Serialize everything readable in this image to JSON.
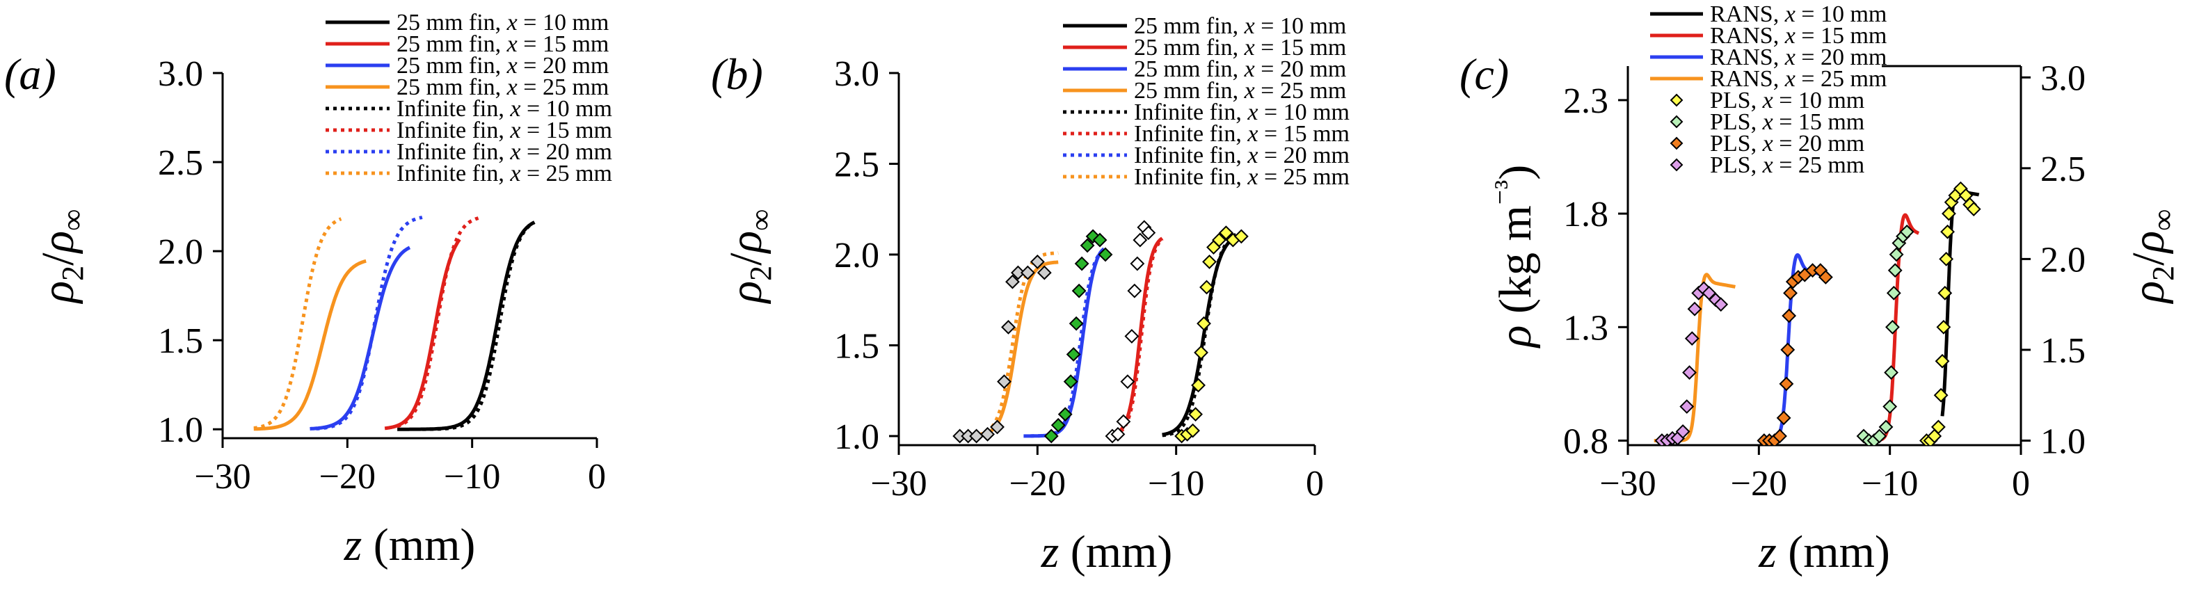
{
  "chart_data": [
    {
      "panel_label": "(a)",
      "type": "line",
      "xlabel_var": "z",
      "xlabel_unit": " (mm)",
      "ylabel": "ρ2/ρ∞",
      "xlim": [
        -30,
        0
      ],
      "ylim": [
        0.95,
        3.0
      ],
      "xticks": [
        -30,
        -20,
        -10,
        0
      ],
      "xtick_labels": [
        "−30",
        "−20",
        "−10",
        "0"
      ],
      "yticks": [
        1.0,
        1.5,
        2.0,
        2.5,
        3.0
      ],
      "ytick_labels": [
        "1.0",
        "1.5",
        "2.0",
        "2.5",
        "3.0"
      ],
      "series": [
        {
          "name": "25 mm fin, x = 10 mm",
          "legend_prefix": "25 mm fin, ",
          "style": "solid",
          "color": "#000000",
          "x0": -16.0,
          "x1": -5.0,
          "center": -8.0,
          "width": 0.8,
          "base": 1.0,
          "peak": 2.19,
          "bump": 0
        },
        {
          "name": "25 mm fin, x = 15 mm",
          "legend_prefix": "25 mm fin, ",
          "style": "solid",
          "color": "#e0201b",
          "x0": -17.0,
          "x1": -11.0,
          "center": -13.0,
          "width": 0.75,
          "base": 1.0,
          "peak": 2.14,
          "bump": 0
        },
        {
          "name": "25 mm fin, x = 20 mm",
          "legend_prefix": "25 mm fin, ",
          "style": "solid",
          "color": "#2b3ff0",
          "x0": -23.0,
          "x1": -15.0,
          "center": -18.0,
          "width": 0.85,
          "base": 1.0,
          "peak": 2.04,
          "bump": 0.01
        },
        {
          "name": "25 mm fin, x = 25 mm",
          "legend_prefix": "25 mm fin, ",
          "style": "solid",
          "color": "#f7931e",
          "x0": -27.5,
          "x1": -18.5,
          "center": -22.0,
          "width": 0.85,
          "base": 1.0,
          "peak": 1.96,
          "bump": 0
        },
        {
          "name": "Infinite fin, x = 10 mm",
          "legend_prefix": "Infinite fin, ",
          "style": "dotted",
          "color": "#000000",
          "x0": -14.0,
          "x1": -5.0,
          "center": -7.8,
          "width": 0.75,
          "base": 1.0,
          "peak": 2.19,
          "bump": 0
        },
        {
          "name": "Infinite fin, x = 15 mm",
          "legend_prefix": "Infinite fin, ",
          "style": "dotted",
          "color": "#e0201b",
          "x0": -16.0,
          "x1": -9.5,
          "center": -12.8,
          "width": 0.75,
          "base": 1.0,
          "peak": 2.2,
          "bump": 0
        },
        {
          "name": "Infinite fin, x = 20 mm",
          "legend_prefix": "Infinite fin, ",
          "style": "dotted",
          "color": "#2b3ff0",
          "x0": -22.5,
          "x1": -14.0,
          "center": -17.8,
          "width": 0.8,
          "base": 1.0,
          "peak": 2.2,
          "bump": 0
        },
        {
          "name": "Infinite fin, x = 25 mm",
          "legend_prefix": "Infinite fin, ",
          "style": "dotted",
          "color": "#f7931e",
          "x0": -27.5,
          "x1": -20.5,
          "center": -23.6,
          "width": 0.75,
          "base": 1.0,
          "peak": 2.2,
          "bump": 0
        }
      ]
    },
    {
      "panel_label": "(b)",
      "type": "line+scatter",
      "xlabel_var": "z",
      "xlabel_unit": " (mm)",
      "ylabel": "ρ2/ρ∞",
      "xlim": [
        -30,
        0
      ],
      "ylim": [
        0.95,
        3.0
      ],
      "xticks": [
        -30,
        -20,
        -10,
        0
      ],
      "xtick_labels": [
        "−30",
        "−20",
        "−10",
        "0"
      ],
      "yticks": [
        1.0,
        1.5,
        2.0,
        2.5,
        3.0
      ],
      "ytick_labels": [
        "1.0",
        "1.5",
        "2.0",
        "2.5",
        "3.0"
      ],
      "series": [
        {
          "name": "25 mm fin, x = 10 mm",
          "legend_prefix": "25 mm fin, ",
          "style": "solid",
          "color": "#000000",
          "x0": -11.0,
          "x1": -5.5,
          "center": -8.0,
          "width": 0.6,
          "base": 1.0,
          "peak": 2.12,
          "bump": 0
        },
        {
          "name": "25 mm fin, x = 15 mm",
          "legend_prefix": "25 mm fin, ",
          "style": "solid",
          "color": "#e0201b",
          "x0": -14.5,
          "x1": -11.0,
          "center": -12.6,
          "width": 0.4,
          "base": 1.0,
          "peak": 2.11,
          "bump": 0
        },
        {
          "name": "25 mm fin, x = 20 mm",
          "legend_prefix": "25 mm fin, ",
          "style": "solid",
          "color": "#2b3ff0",
          "x0": -21.0,
          "x1": -15.2,
          "center": -16.8,
          "width": 0.45,
          "base": 1.0,
          "peak": 2.0,
          "bump": 0.06
        },
        {
          "name": "25 mm fin, x = 25 mm",
          "legend_prefix": "25 mm fin, ",
          "style": "solid",
          "color": "#f7931e",
          "x0": -24.2,
          "x1": -18.5,
          "center": -21.6,
          "width": 0.5,
          "base": 1.0,
          "peak": 1.96,
          "bump": 0
        },
        {
          "name": "Infinite fin, x = 10 mm",
          "legend_prefix": "Infinite fin, ",
          "style": "dotted",
          "color": "#000000",
          "x0": -11.0,
          "x1": -5.5,
          "center": -7.9,
          "width": 0.55,
          "base": 1.0,
          "peak": 2.13,
          "bump": 0
        },
        {
          "name": "Infinite fin, x = 15 mm",
          "legend_prefix": "Infinite fin, ",
          "style": "dotted",
          "color": "#e0201b",
          "x0": -14.5,
          "x1": -11.0,
          "center": -12.5,
          "width": 0.4,
          "base": 1.0,
          "peak": 2.11,
          "bump": 0
        },
        {
          "name": "Infinite fin, x = 20 mm",
          "legend_prefix": "Infinite fin, ",
          "style": "dotted",
          "color": "#2b3ff0",
          "x0": -20.5,
          "x1": -15.2,
          "center": -16.9,
          "width": 0.45,
          "base": 1.0,
          "peak": 2.05,
          "bump": 0
        },
        {
          "name": "Infinite fin, x = 25 mm",
          "legend_prefix": "Infinite fin, ",
          "style": "dotted",
          "color": "#f7931e",
          "x0": -24.2,
          "x1": -18.5,
          "center": -21.8,
          "width": 0.5,
          "base": 1.0,
          "peak": 2.01,
          "bump": 0
        }
      ],
      "markers": [
        {
          "name": "Experiment markers 10 mm",
          "color": "#ffff4d",
          "points": [
            [
              -9.6,
              1.0
            ],
            [
              -9.2,
              1.01
            ],
            [
              -8.8,
              1.03
            ],
            [
              -8.6,
              1.12
            ],
            [
              -8.4,
              1.28
            ],
            [
              -8.2,
              1.46
            ],
            [
              -8.0,
              1.62
            ],
            [
              -7.8,
              1.82
            ],
            [
              -7.6,
              1.96
            ],
            [
              -7.3,
              2.04
            ],
            [
              -6.9,
              2.08
            ],
            [
              -6.4,
              2.12
            ],
            [
              -5.9,
              2.08
            ],
            [
              -5.3,
              2.1
            ]
          ]
        },
        {
          "name": "Experiment markers 15 mm",
          "color": "#ffffff",
          "points": [
            [
              -14.6,
              1.0
            ],
            [
              -14.2,
              1.01
            ],
            [
              -13.8,
              1.08
            ],
            [
              -13.5,
              1.3
            ],
            [
              -13.2,
              1.55
            ],
            [
              -13.0,
              1.8
            ],
            [
              -12.8,
              1.95
            ],
            [
              -12.6,
              2.08
            ],
            [
              -12.3,
              2.15
            ],
            [
              -12.0,
              2.12
            ]
          ]
        },
        {
          "name": "Experiment markers 20 mm",
          "color": "#2ab52a",
          "points": [
            [
              -19.0,
              1.0
            ],
            [
              -18.5,
              1.06
            ],
            [
              -18.0,
              1.12
            ],
            [
              -17.6,
              1.3
            ],
            [
              -17.4,
              1.45
            ],
            [
              -17.2,
              1.62
            ],
            [
              -17.0,
              1.8
            ],
            [
              -16.8,
              1.95
            ],
            [
              -16.4,
              2.05
            ],
            [
              -16.0,
              2.1
            ],
            [
              -15.5,
              2.08
            ],
            [
              -15.1,
              2.0
            ]
          ]
        },
        {
          "name": "Experiment markers 25 mm",
          "color": "#cfcfcf",
          "points": [
            [
              -25.6,
              1.0
            ],
            [
              -25.0,
              1.0
            ],
            [
              -24.4,
              1.0
            ],
            [
              -23.6,
              1.01
            ],
            [
              -22.9,
              1.05
            ],
            [
              -22.4,
              1.3
            ],
            [
              -22.1,
              1.6
            ],
            [
              -21.8,
              1.85
            ],
            [
              -21.4,
              1.9
            ],
            [
              -20.7,
              1.9
            ],
            [
              -20.0,
              1.96
            ],
            [
              -19.5,
              1.9
            ]
          ]
        }
      ]
    },
    {
      "panel_label": "(c)",
      "type": "line+scatter",
      "xlabel_var": "z",
      "xlabel_unit": " (mm)",
      "ylabel_left": "ρ (kg m⁻³)",
      "ylabel_right": "ρ2/ρ∞",
      "xlim": [
        -30,
        0
      ],
      "ylim": [
        0.78,
        2.45
      ],
      "xticks": [
        -30,
        -20,
        -10,
        0
      ],
      "xtick_labels": [
        "−30",
        "−20",
        "−10",
        "0"
      ],
      "yticks": [
        0.8,
        1.3,
        1.8,
        2.3
      ],
      "ytick_labels": [
        "0.8",
        "1.3",
        "1.8",
        "2.3"
      ],
      "right_scale": 0.8,
      "right_yticks": [
        1.0,
        1.5,
        2.0,
        2.5,
        3.0
      ],
      "right_ytick_labels": [
        "1.0",
        "1.5",
        "2.0",
        "2.5",
        "3.0"
      ],
      "series": [
        {
          "name": "RANS, x = 10 mm",
          "legend_prefix": "RANS, ",
          "style": "solid",
          "color": "#000000",
          "x0": -6.0,
          "x1": -3.2,
          "center": -5.6,
          "width": 0.18,
          "base": 0.8,
          "peak": 1.9,
          "bump": 0.04
        },
        {
          "name": "RANS, x = 15 mm",
          "legend_prefix": "RANS, ",
          "style": "solid",
          "color": "#e0201b",
          "x0": -12.0,
          "x1": -7.8,
          "center": -9.6,
          "width": 0.2,
          "base": 0.8,
          "peak": 1.74,
          "bump": 0.08
        },
        {
          "name": "RANS, x = 20 mm",
          "legend_prefix": "RANS, ",
          "style": "solid",
          "color": "#2b3ff0",
          "x0": -19.0,
          "x1": -14.8,
          "center": -17.8,
          "width": 0.2,
          "base": 0.8,
          "peak": 1.56,
          "bump": 0.08
        },
        {
          "name": "RANS, x = 25 mm",
          "legend_prefix": "RANS, ",
          "style": "solid",
          "color": "#f7931e",
          "x0": -28.0,
          "x1": -21.8,
          "center": -24.7,
          "width": 0.18,
          "base": 0.8,
          "peak": 1.5,
          "bump": 0.05
        }
      ],
      "markers": [
        {
          "name": "PLS, x = 10 mm",
          "legend_prefix": "PLS, ",
          "color": "#ffff4d",
          "points": [
            [
              -7.2,
              0.8
            ],
            [
              -6.9,
              0.8
            ],
            [
              -6.6,
              0.82
            ],
            [
              -6.3,
              0.86
            ],
            [
              -6.1,
              1.0
            ],
            [
              -6.0,
              1.15
            ],
            [
              -5.9,
              1.3
            ],
            [
              -5.8,
              1.45
            ],
            [
              -5.7,
              1.6
            ],
            [
              -5.6,
              1.72
            ],
            [
              -5.5,
              1.8
            ],
            [
              -5.3,
              1.85
            ],
            [
              -5.0,
              1.88
            ],
            [
              -4.6,
              1.91
            ],
            [
              -4.2,
              1.88
            ],
            [
              -3.9,
              1.84
            ],
            [
              -3.6,
              1.82
            ]
          ]
        },
        {
          "name": "PLS, x = 15 mm",
          "legend_prefix": "PLS, ",
          "color": "#b8f0b8",
          "points": [
            [
              -12.0,
              0.82
            ],
            [
              -11.6,
              0.8
            ],
            [
              -11.2,
              0.8
            ],
            [
              -10.8,
              0.82
            ],
            [
              -10.3,
              0.86
            ],
            [
              -10.0,
              0.95
            ],
            [
              -9.9,
              1.1
            ],
            [
              -9.8,
              1.3
            ],
            [
              -9.7,
              1.45
            ],
            [
              -9.6,
              1.55
            ],
            [
              -9.5,
              1.62
            ],
            [
              -9.3,
              1.67
            ],
            [
              -9.0,
              1.7
            ],
            [
              -8.7,
              1.72
            ]
          ]
        },
        {
          "name": "PLS, x = 20 mm",
          "legend_prefix": "PLS, ",
          "color": "#f07d1e",
          "points": [
            [
              -19.6,
              0.8
            ],
            [
              -19.2,
              0.8
            ],
            [
              -18.8,
              0.8
            ],
            [
              -18.4,
              0.82
            ],
            [
              -18.1,
              0.9
            ],
            [
              -17.9,
              1.05
            ],
            [
              -17.8,
              1.2
            ],
            [
              -17.7,
              1.35
            ],
            [
              -17.6,
              1.45
            ],
            [
              -17.4,
              1.5
            ],
            [
              -17.0,
              1.52
            ],
            [
              -16.5,
              1.53
            ],
            [
              -15.9,
              1.55
            ],
            [
              -15.3,
              1.55
            ],
            [
              -14.9,
              1.52
            ]
          ]
        },
        {
          "name": "PLS, x = 25 mm",
          "legend_prefix": "PLS, ",
          "color": "#dc9ee8",
          "points": [
            [
              -27.4,
              0.8
            ],
            [
              -27.0,
              0.8
            ],
            [
              -26.6,
              0.81
            ],
            [
              -26.2,
              0.81
            ],
            [
              -25.8,
              0.84
            ],
            [
              -25.5,
              0.95
            ],
            [
              -25.3,
              1.1
            ],
            [
              -25.1,
              1.25
            ],
            [
              -24.9,
              1.38
            ],
            [
              -24.6,
              1.45
            ],
            [
              -24.2,
              1.47
            ],
            [
              -23.8,
              1.45
            ],
            [
              -23.3,
              1.42
            ],
            [
              -22.9,
              1.4
            ]
          ]
        }
      ]
    }
  ]
}
